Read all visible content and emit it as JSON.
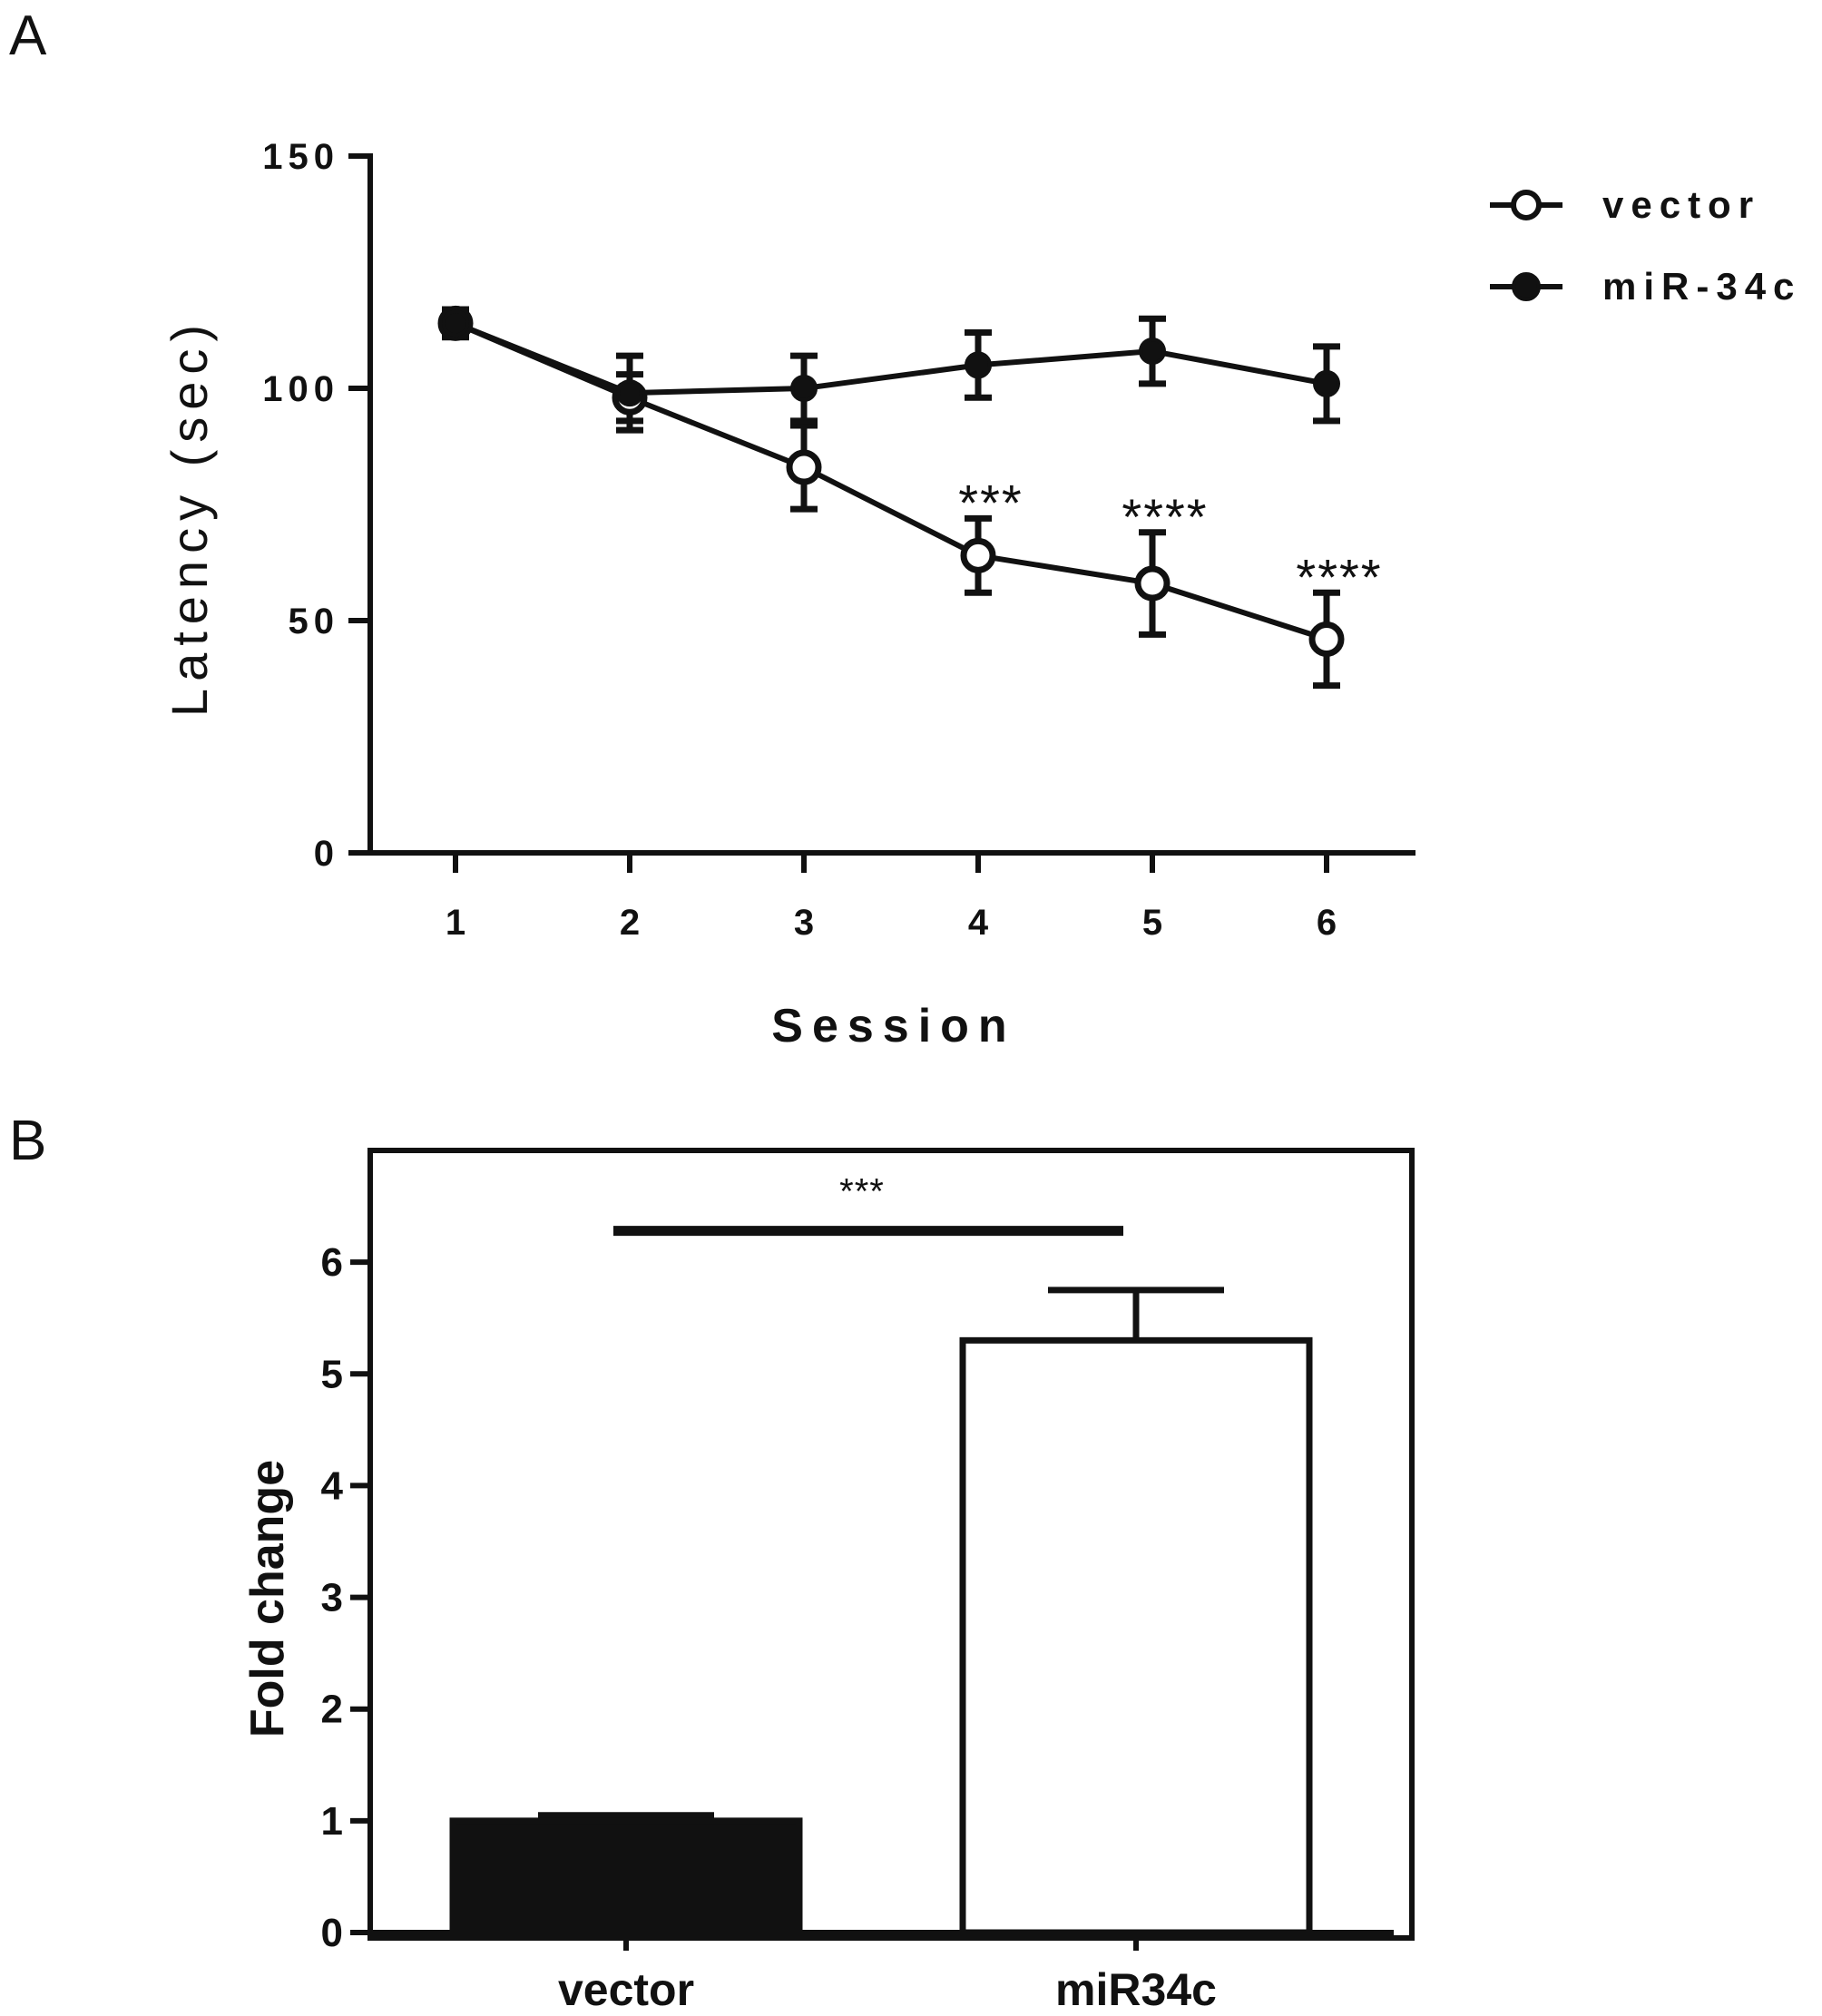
{
  "panels": {
    "a_label": "A",
    "b_label": "B"
  },
  "colors": {
    "ink": "#111111",
    "background": "#ffffff"
  },
  "chart_data": [
    {
      "type": "line",
      "panel": "A",
      "title": "",
      "xlabel": "Session",
      "ylabel": "Latency (sec)",
      "x": [
        1,
        2,
        3,
        4,
        5,
        6
      ],
      "x_tick_labels": [
        "1",
        "2",
        "3",
        "4",
        "5",
        "6"
      ],
      "ylim": [
        0,
        150
      ],
      "y_ticks": [
        0,
        50,
        100,
        150
      ],
      "y_tick_labels": [
        "0",
        "50",
        "100",
        "150"
      ],
      "grid": false,
      "legend_position": "top-right",
      "series": [
        {
          "name": "vector",
          "marker": "open-circle",
          "values": [
            114,
            98,
            83,
            64,
            58,
            46
          ],
          "errors": [
            3,
            5,
            9,
            8,
            11,
            10
          ]
        },
        {
          "name": "miR-34c",
          "marker": "filled-circle",
          "values": [
            114,
            99,
            100,
            105,
            108,
            101
          ],
          "errors": [
            3,
            8,
            7,
            7,
            7,
            8
          ]
        }
      ],
      "annotations": [
        {
          "x": 4,
          "y": 79,
          "text": "***"
        },
        {
          "x": 5,
          "y": 76,
          "text": "****"
        },
        {
          "x": 6,
          "y": 63,
          "text": "****"
        }
      ]
    },
    {
      "type": "bar",
      "panel": "B",
      "title": "",
      "xlabel": "",
      "ylabel": "Fold change",
      "categories": [
        "vector",
        "miR34c"
      ],
      "values": [
        1.0,
        5.3
      ],
      "errors": [
        0.05,
        0.45
      ],
      "fills": [
        "#111111",
        "#ffffff"
      ],
      "ylim": [
        0,
        7
      ],
      "y_ticks": [
        0,
        1,
        2,
        3,
        4,
        5,
        6
      ],
      "y_tick_labels": [
        "0",
        "1",
        "2",
        "3",
        "4",
        "5",
        "6"
      ],
      "grid": false,
      "significance": {
        "from": 0,
        "to": 1,
        "y": 6.28,
        "text": "***"
      }
    }
  ]
}
